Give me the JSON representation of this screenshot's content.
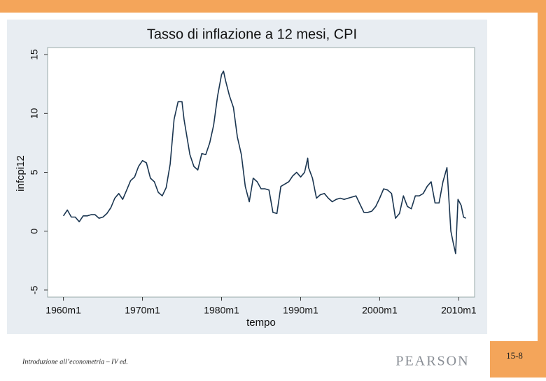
{
  "chart_data": {
    "type": "line",
    "title": "Tasso di inflazione a 12 mesi, CPI",
    "xlabel": "tempo",
    "ylabel": "infcpi12",
    "x": [
      1960,
      1960.5,
      1961,
      1961.5,
      1962,
      1962.5,
      1963,
      1963.5,
      1964,
      1964.5,
      1965,
      1965.5,
      1966,
      1966.5,
      1967,
      1967.5,
      1968,
      1968.5,
      1969,
      1969.5,
      1970,
      1970.5,
      1971,
      1971.5,
      1972,
      1972.5,
      1973,
      1973.5,
      1974,
      1974.5,
      1975,
      1975.25,
      1975.5,
      1976,
      1976.5,
      1977,
      1977.5,
      1978,
      1978.5,
      1979,
      1979.5,
      1980,
      1980.25,
      1980.5,
      1981,
      1981.5,
      1982,
      1982.5,
      1983,
      1983.5,
      1984,
      1984.5,
      1985,
      1985.5,
      1986,
      1986.5,
      1987,
      1987.5,
      1988,
      1988.5,
      1989,
      1989.5,
      1990,
      1990.5,
      1990.9,
      1991,
      1991.5,
      1992,
      1992.5,
      1993,
      1993.5,
      1994,
      1994.5,
      1995,
      1995.5,
      1996,
      1996.5,
      1997,
      1997.5,
      1998,
      1998.5,
      1999,
      1999.5,
      2000,
      2000.5,
      2001,
      2001.5,
      2002,
      2002.5,
      2003,
      2003.5,
      2004,
      2004.5,
      2005,
      2005.5,
      2006,
      2006.5,
      2007,
      2007.5,
      2008,
      2008.5,
      2009,
      2009.3,
      2009.6,
      2009.9,
      2010.3,
      2010.6,
      2010.9
    ],
    "values": [
      1.3,
      1.8,
      1.2,
      1.2,
      0.8,
      1.3,
      1.3,
      1.4,
      1.4,
      1.1,
      1.2,
      1.5,
      2.0,
      2.8,
      3.2,
      2.7,
      3.5,
      4.3,
      4.6,
      5.5,
      6.0,
      5.8,
      4.5,
      4.2,
      3.3,
      3.0,
      3.7,
      5.7,
      9.5,
      11.0,
      11.0,
      9.5,
      8.5,
      6.5,
      5.5,
      5.2,
      6.6,
      6.5,
      7.5,
      9.0,
      11.5,
      13.3,
      13.6,
      12.8,
      11.5,
      10.5,
      8.0,
      6.5,
      3.8,
      2.5,
      4.5,
      4.2,
      3.6,
      3.6,
      3.5,
      1.6,
      1.5,
      3.8,
      4.0,
      4.2,
      4.7,
      5.0,
      4.6,
      5.0,
      6.2,
      5.4,
      4.5,
      2.8,
      3.1,
      3.2,
      2.8,
      2.5,
      2.7,
      2.8,
      2.7,
      2.8,
      2.9,
      3.0,
      2.3,
      1.6,
      1.6,
      1.7,
      2.1,
      2.8,
      3.6,
      3.5,
      3.2,
      1.1,
      1.5,
      3.0,
      2.1,
      1.9,
      3.0,
      3.0,
      3.2,
      3.8,
      4.2,
      2.4,
      2.4,
      4.2,
      5.4,
      0.0,
      -1.0,
      -1.9,
      2.7,
      2.2,
      1.2,
      1.1
    ],
    "color": "#1a3550",
    "xlim": [
      1958,
      2012
    ],
    "ylim": [
      -5.6,
      15.6
    ],
    "xticks": [
      {
        "value": 1960,
        "label": "1960m1"
      },
      {
        "value": 1970,
        "label": "1970m1"
      },
      {
        "value": 1980,
        "label": "1980m1"
      },
      {
        "value": 1990,
        "label": "1990m1"
      },
      {
        "value": 2000,
        "label": "2000m1"
      },
      {
        "value": 2010,
        "label": "2010m1"
      }
    ],
    "yticks": [
      -5,
      0,
      5,
      10,
      15
    ],
    "grid": false
  },
  "footer": {
    "text": "Introduzione all’econometria – IV ed.",
    "logo": "PEARSON",
    "page": "15-8"
  }
}
